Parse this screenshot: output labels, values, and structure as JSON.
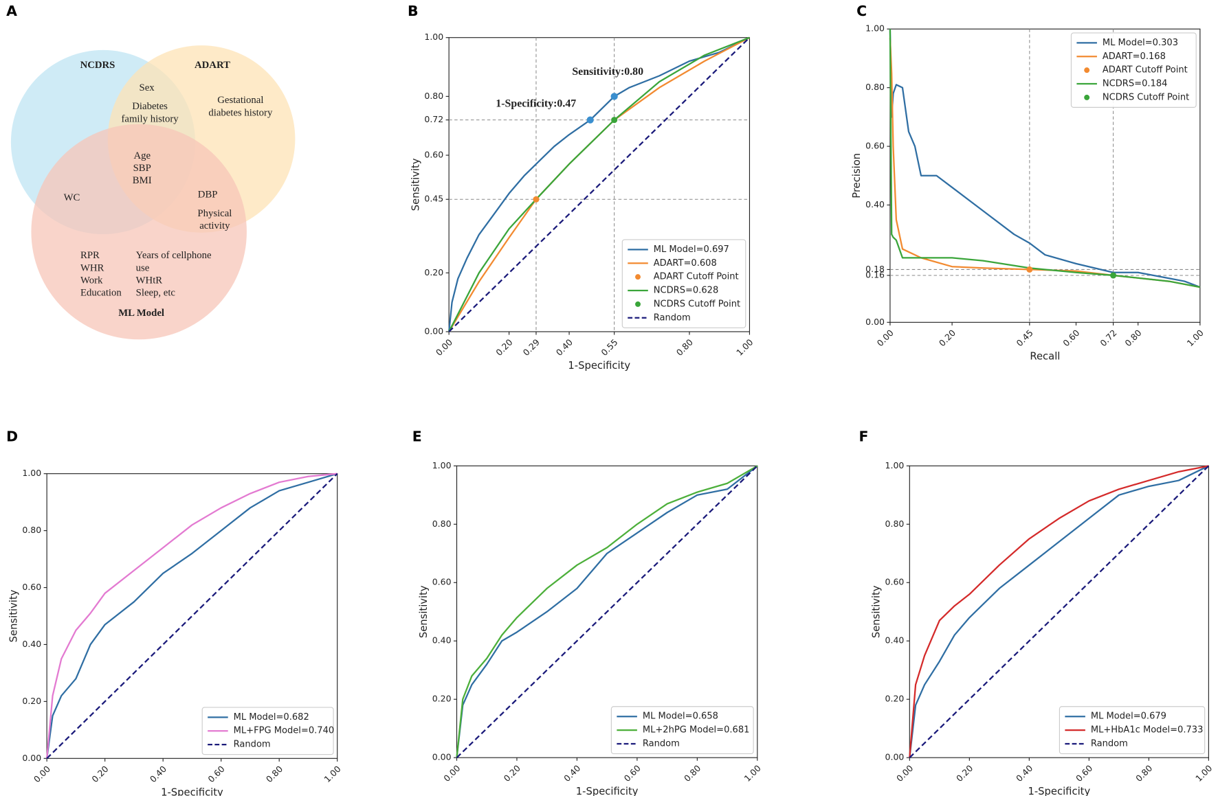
{
  "chart_data": [
    {
      "type": "venn",
      "panel": "A",
      "sets": [
        {
          "name": "NCDRS",
          "color": "#bfe4f3"
        },
        {
          "name": "ADART",
          "color": "#fde3b5"
        },
        {
          "name": "ML Model",
          "color": "#f7c6b8"
        }
      ],
      "regions": [
        [
          "Sex"
        ],
        [
          "Diabetes",
          "family history"
        ],
        [
          "Gestational",
          "diabetes history"
        ],
        [
          "Age",
          "SBP",
          "BMI"
        ],
        [
          "WC"
        ],
        [
          "DBP"
        ],
        [
          "Physical",
          "activity"
        ],
        [
          "RPR",
          "WHR",
          "Work",
          "Education"
        ],
        [
          "Years of cellphone",
          "use",
          "WHtR",
          "Sleep, etc"
        ]
      ]
    },
    {
      "type": "line",
      "panel": "B",
      "xlabel": "1-Specificity",
      "ylabel": "Sensitivity",
      "xlim": [
        0,
        1
      ],
      "ylim": [
        0,
        1
      ],
      "xticks": [
        {
          "value": 0,
          "label": "0.00"
        },
        {
          "value": 0.2,
          "label": "0.20"
        },
        {
          "value": 0.29,
          "label": "0.29"
        },
        {
          "value": 0.4,
          "label": "0.40"
        },
        {
          "value": 0.55,
          "label": "0.55"
        },
        {
          "value": 0.8,
          "label": "0.80"
        },
        {
          "value": 1,
          "label": "1.00"
        }
      ],
      "yticks": [
        {
          "value": 0,
          "label": "0.00"
        },
        {
          "value": 0.2,
          "label": "0.20"
        },
        {
          "value": 0.45,
          "label": "0.45"
        },
        {
          "value": 0.6,
          "label": "0.60"
        },
        {
          "value": 0.72,
          "label": "0.72"
        },
        {
          "value": 0.8,
          "label": "0.80"
        },
        {
          "value": 1,
          "label": "1.00"
        }
      ],
      "ref_lines": {
        "x": [
          0.29,
          0.55
        ],
        "y": [
          0.45,
          0.72
        ]
      },
      "annotations": [
        {
          "text": "Sensitivity:0.80",
          "x": 0.55,
          "y": 0.8
        },
        {
          "text": "1-Specificity:0.47",
          "x": 0.47,
          "y": 0.72
        }
      ],
      "annotation_color": "#3a8fcf",
      "legend": "lower right",
      "series": [
        {
          "name": "ML Model=0.697",
          "color": "#2f6ea3",
          "x": [
            0,
            0.01,
            0.03,
            0.06,
            0.1,
            0.15,
            0.2,
            0.25,
            0.3,
            0.35,
            0.4,
            0.47,
            0.55,
            0.6,
            0.7,
            0.8,
            0.9,
            1
          ],
          "values": [
            0,
            0.1,
            0.18,
            0.25,
            0.33,
            0.4,
            0.47,
            0.53,
            0.58,
            0.63,
            0.67,
            0.72,
            0.8,
            0.83,
            0.87,
            0.92,
            0.95,
            1
          ]
        },
        {
          "name": "ADART=0.608",
          "color": "#f28a30",
          "x": [
            0,
            0.1,
            0.2,
            0.29,
            0.4,
            0.55,
            0.7,
            0.85,
            1
          ],
          "values": [
            0,
            0.17,
            0.32,
            0.45,
            0.57,
            0.72,
            0.83,
            0.92,
            1
          ]
        },
        {
          "name": "ADART Cutoff Point",
          "color": "#f28a30",
          "marker": true,
          "x": [
            0.29
          ],
          "values": [
            0.45
          ]
        },
        {
          "name": "NCDRS=0.628",
          "color": "#3aa53a",
          "x": [
            0,
            0.05,
            0.1,
            0.2,
            0.29,
            0.4,
            0.55,
            0.7,
            0.85,
            1
          ],
          "values": [
            0,
            0.1,
            0.2,
            0.35,
            0.45,
            0.57,
            0.72,
            0.85,
            0.94,
            1
          ]
        },
        {
          "name": "NCDRS Cutoff Point",
          "color": "#3aa53a",
          "marker": true,
          "x": [
            0.55
          ],
          "values": [
            0.72
          ]
        },
        {
          "name": "Random",
          "color": "#1a1a7a",
          "dashed": true,
          "x": [
            0,
            1
          ],
          "values": [
            0,
            1
          ]
        }
      ]
    },
    {
      "type": "line",
      "panel": "C",
      "xlabel": "Recall",
      "ylabel": "Precision",
      "xlim": [
        0,
        1
      ],
      "ylim": [
        0,
        1
      ],
      "xticks": [
        {
          "value": 0,
          "label": "0.00"
        },
        {
          "value": 0.2,
          "label": "0.20"
        },
        {
          "value": 0.45,
          "label": "0.45"
        },
        {
          "value": 0.6,
          "label": "0.60"
        },
        {
          "value": 0.72,
          "label": "0.72"
        },
        {
          "value": 0.8,
          "label": "0.80"
        },
        {
          "value": 1,
          "label": "1.00"
        }
      ],
      "yticks": [
        {
          "value": 0,
          "label": "0.00"
        },
        {
          "value": 0.16,
          "label": "0.16"
        },
        {
          "value": 0.18,
          "label": "0.18"
        },
        {
          "value": 0.4,
          "label": "0.40"
        },
        {
          "value": 0.6,
          "label": "0.60"
        },
        {
          "value": 0.8,
          "label": "0.80"
        },
        {
          "value": 1,
          "label": "1.00"
        }
      ],
      "ref_lines": {
        "x": [
          0.45,
          0.72
        ],
        "y": [
          0.18,
          0.16
        ]
      },
      "legend": "upper right",
      "series": [
        {
          "name": "ML Model=0.303",
          "color": "#2f6ea3",
          "x": [
            0,
            0.005,
            0.01,
            0.02,
            0.04,
            0.06,
            0.08,
            0.1,
            0.15,
            0.2,
            0.3,
            0.4,
            0.45,
            0.5,
            0.6,
            0.72,
            0.8,
            0.9,
            0.95,
            1
          ],
          "values": [
            1,
            0.7,
            0.78,
            0.81,
            0.8,
            0.65,
            0.6,
            0.5,
            0.5,
            0.46,
            0.38,
            0.3,
            0.27,
            0.23,
            0.2,
            0.17,
            0.17,
            0.15,
            0.14,
            0.12
          ]
        },
        {
          "name": "ADART=0.168",
          "color": "#f28a30",
          "x": [
            0,
            0.005,
            0.01,
            0.02,
            0.04,
            0.1,
            0.2,
            0.3,
            0.45,
            0.6,
            0.72,
            0.9,
            1
          ],
          "values": [
            0.97,
            0.85,
            0.6,
            0.35,
            0.25,
            0.22,
            0.19,
            0.185,
            0.18,
            0.175,
            0.16,
            0.14,
            0.12
          ]
        },
        {
          "name": "ADART Cutoff Point",
          "color": "#f28a30",
          "marker": true,
          "x": [
            0.45
          ],
          "values": [
            0.18
          ]
        },
        {
          "name": "NCDRS=0.184",
          "color": "#3aa53a",
          "x": [
            0,
            0.005,
            0.01,
            0.02,
            0.04,
            0.1,
            0.2,
            0.3,
            0.45,
            0.6,
            0.72,
            0.9,
            1
          ],
          "values": [
            1,
            0.3,
            0.29,
            0.28,
            0.22,
            0.22,
            0.22,
            0.21,
            0.185,
            0.17,
            0.16,
            0.14,
            0.12
          ]
        },
        {
          "name": "NCDRS Cutoff Point",
          "color": "#3aa53a",
          "marker": true,
          "x": [
            0.72
          ],
          "values": [
            0.16
          ]
        }
      ]
    },
    {
      "type": "line",
      "panel": "D",
      "xlabel": "1-Specificity",
      "ylabel": "Sensitivity",
      "xlim": [
        0,
        1
      ],
      "ylim": [
        0,
        1
      ],
      "xticks": [
        {
          "value": 0,
          "label": "0.00"
        },
        {
          "value": 0.2,
          "label": "0.20"
        },
        {
          "value": 0.4,
          "label": "0.40"
        },
        {
          "value": 0.6,
          "label": "0.60"
        },
        {
          "value": 0.8,
          "label": "0.80"
        },
        {
          "value": 1,
          "label": "1.00"
        }
      ],
      "yticks": [
        {
          "value": 0,
          "label": "0.00"
        },
        {
          "value": 0.2,
          "label": "0.20"
        },
        {
          "value": 0.4,
          "label": "0.40"
        },
        {
          "value": 0.6,
          "label": "0.60"
        },
        {
          "value": 0.8,
          "label": "0.80"
        },
        {
          "value": 1,
          "label": "1.00"
        }
      ],
      "legend": "lower right",
      "series": [
        {
          "name": "ML Model=0.682",
          "color": "#2f6ea3",
          "x": [
            0,
            0.02,
            0.05,
            0.1,
            0.15,
            0.2,
            0.3,
            0.4,
            0.5,
            0.6,
            0.7,
            0.8,
            0.9,
            1
          ],
          "values": [
            0,
            0.15,
            0.22,
            0.28,
            0.4,
            0.47,
            0.55,
            0.65,
            0.72,
            0.8,
            0.88,
            0.94,
            0.97,
            1
          ]
        },
        {
          "name": "ML+FPG Model=0.740",
          "color": "#e37ad1",
          "x": [
            0,
            0.02,
            0.05,
            0.1,
            0.15,
            0.2,
            0.3,
            0.4,
            0.5,
            0.6,
            0.7,
            0.8,
            0.9,
            1
          ],
          "values": [
            0,
            0.22,
            0.35,
            0.45,
            0.51,
            0.58,
            0.66,
            0.74,
            0.82,
            0.88,
            0.93,
            0.97,
            0.99,
            1
          ]
        },
        {
          "name": "Random",
          "color": "#1a1a7a",
          "dashed": true,
          "x": [
            0,
            1
          ],
          "values": [
            0,
            1
          ]
        }
      ]
    },
    {
      "type": "line",
      "panel": "E",
      "xlabel": "1-Specificity",
      "ylabel": "Sensitivity",
      "xlim": [
        0,
        1
      ],
      "ylim": [
        0,
        1
      ],
      "xticks": [
        {
          "value": 0,
          "label": "0.00"
        },
        {
          "value": 0.2,
          "label": "0.20"
        },
        {
          "value": 0.4,
          "label": "0.40"
        },
        {
          "value": 0.6,
          "label": "0.60"
        },
        {
          "value": 0.8,
          "label": "0.80"
        },
        {
          "value": 1,
          "label": "1.00"
        }
      ],
      "yticks": [
        {
          "value": 0,
          "label": "0.00"
        },
        {
          "value": 0.2,
          "label": "0.20"
        },
        {
          "value": 0.4,
          "label": "0.40"
        },
        {
          "value": 0.6,
          "label": "0.60"
        },
        {
          "value": 0.8,
          "label": "0.80"
        },
        {
          "value": 1,
          "label": "1.00"
        }
      ],
      "legend": "lower right",
      "series": [
        {
          "name": "ML Model=0.658",
          "color": "#2f6ea3",
          "x": [
            0,
            0.02,
            0.05,
            0.1,
            0.15,
            0.2,
            0.3,
            0.4,
            0.5,
            0.6,
            0.7,
            0.8,
            0.9,
            1
          ],
          "values": [
            0,
            0.18,
            0.25,
            0.32,
            0.4,
            0.43,
            0.5,
            0.58,
            0.7,
            0.77,
            0.84,
            0.9,
            0.92,
            1
          ]
        },
        {
          "name": "ML+2hPG Model=0.681",
          "color": "#4caf3a",
          "x": [
            0,
            0.02,
            0.05,
            0.1,
            0.15,
            0.2,
            0.3,
            0.4,
            0.5,
            0.6,
            0.7,
            0.8,
            0.9,
            1
          ],
          "values": [
            0,
            0.2,
            0.28,
            0.34,
            0.42,
            0.48,
            0.58,
            0.66,
            0.72,
            0.8,
            0.87,
            0.91,
            0.94,
            1
          ]
        },
        {
          "name": "Random",
          "color": "#1a1a7a",
          "dashed": true,
          "x": [
            0,
            1
          ],
          "values": [
            0,
            1
          ]
        }
      ]
    },
    {
      "type": "line",
      "panel": "F",
      "xlabel": "1-Specificity",
      "ylabel": "Sensitivity",
      "xlim": [
        0,
        1
      ],
      "ylim": [
        0,
        1
      ],
      "xticks": [
        {
          "value": 0,
          "label": "0.00"
        },
        {
          "value": 0.2,
          "label": "0.20"
        },
        {
          "value": 0.4,
          "label": "0.40"
        },
        {
          "value": 0.6,
          "label": "0.60"
        },
        {
          "value": 0.8,
          "label": "0.80"
        },
        {
          "value": 1,
          "label": "1.00"
        }
      ],
      "yticks": [
        {
          "value": 0,
          "label": "0.00"
        },
        {
          "value": 0.2,
          "label": "0.20"
        },
        {
          "value": 0.4,
          "label": "0.40"
        },
        {
          "value": 0.6,
          "label": "0.60"
        },
        {
          "value": 0.8,
          "label": "0.80"
        },
        {
          "value": 1,
          "label": "1.00"
        }
      ],
      "legend": "lower right",
      "series": [
        {
          "name": "ML Model=0.679",
          "color": "#2f6ea3",
          "x": [
            0,
            0.02,
            0.05,
            0.1,
            0.15,
            0.2,
            0.3,
            0.4,
            0.5,
            0.6,
            0.7,
            0.8,
            0.9,
            1
          ],
          "values": [
            0,
            0.18,
            0.25,
            0.33,
            0.42,
            0.48,
            0.58,
            0.66,
            0.74,
            0.82,
            0.9,
            0.93,
            0.95,
            1
          ]
        },
        {
          "name": "ML+HbA1c Model=0.733",
          "color": "#d42a2a",
          "x": [
            0,
            0.02,
            0.05,
            0.1,
            0.15,
            0.2,
            0.3,
            0.4,
            0.5,
            0.6,
            0.7,
            0.8,
            0.9,
            1
          ],
          "values": [
            0,
            0.25,
            0.35,
            0.47,
            0.52,
            0.56,
            0.66,
            0.75,
            0.82,
            0.88,
            0.92,
            0.95,
            0.98,
            1
          ]
        },
        {
          "name": "Random",
          "color": "#1a1a7a",
          "dashed": true,
          "x": [
            0,
            1
          ],
          "values": [
            0,
            1
          ]
        }
      ]
    }
  ]
}
